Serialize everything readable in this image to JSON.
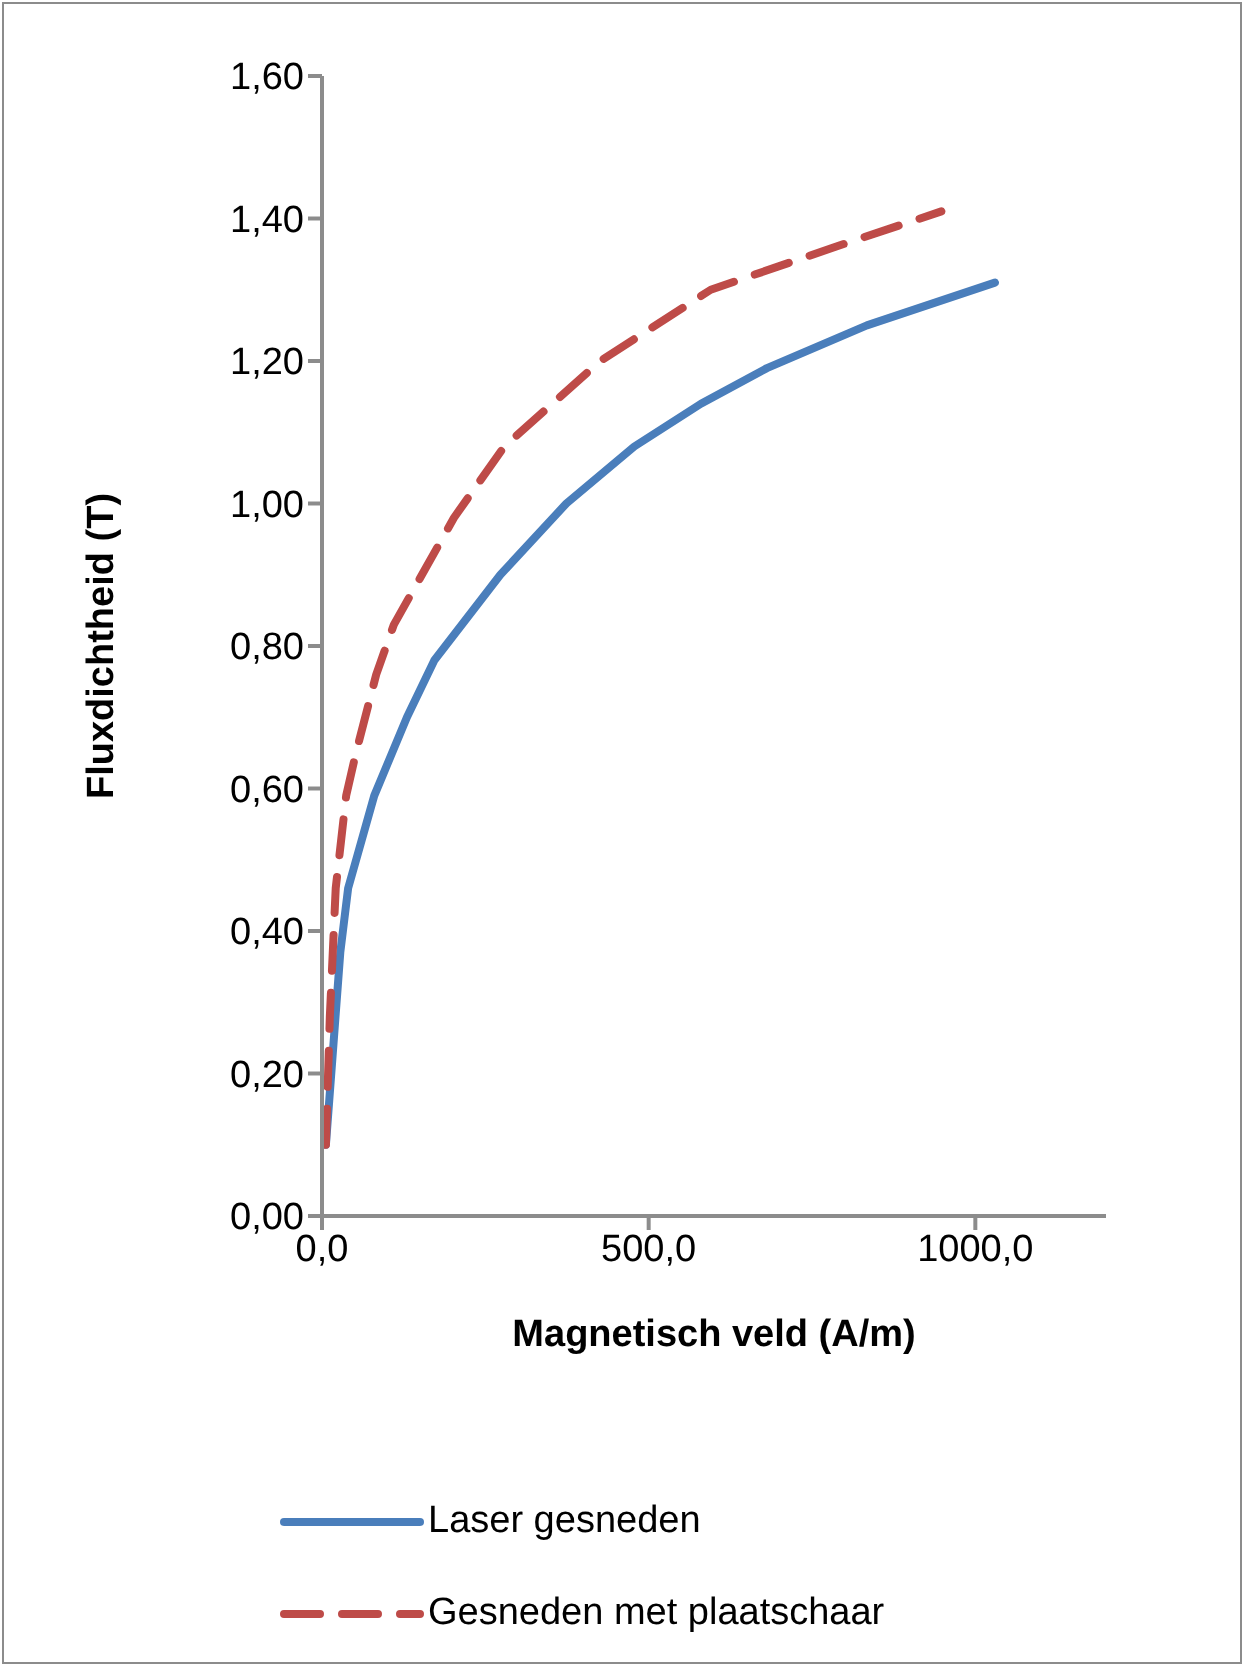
{
  "chart_data": {
    "type": "line",
    "xlabel": "Magnetisch veld (A/m)",
    "ylabel": "Fluxdichtheid (T)",
    "xlim": [
      0,
      1200
    ],
    "xticks": [
      {
        "value": 0,
        "label": "0,0"
      },
      {
        "value": 500,
        "label": "500,0"
      },
      {
        "value": 1000,
        "label": "1000,0"
      }
    ],
    "ylim": [
      0,
      1.6
    ],
    "yticks": [
      {
        "value": 0,
        "label": "0,00"
      },
      {
        "value": 0.2,
        "label": "0,20"
      },
      {
        "value": 0.4,
        "label": "0,40"
      },
      {
        "value": 0.6,
        "label": "0,60"
      },
      {
        "value": 0.8,
        "label": "0,80"
      },
      {
        "value": 1.0,
        "label": "1,00"
      },
      {
        "value": 1.2,
        "label": "1,20"
      },
      {
        "value": 1.4,
        "label": "1,40"
      },
      {
        "value": 1.6,
        "label": "1,60"
      }
    ],
    "grid": false,
    "legend": "bottom",
    "marker": "none",
    "series": [
      {
        "name": "Laser gesneden",
        "color": "#4a7ebb",
        "line_style": "solid",
        "x": [
          6,
          15,
          28,
          40,
          80,
          130,
          172,
          273,
          374,
          478,
          580,
          681,
          834,
          1030
        ],
        "values": [
          0.1,
          0.21,
          0.37,
          0.46,
          0.59,
          0.7,
          0.78,
          0.9,
          1.0,
          1.08,
          1.14,
          1.19,
          1.25,
          1.31
        ]
      },
      {
        "name": "Gesneden met plaatschaar",
        "color": "#be4b48",
        "line_style": "dashed",
        "x": [
          6,
          12,
          18,
          21,
          37,
          52,
          83,
          110,
          202,
          279,
          426,
          595,
          785,
          948
        ],
        "values": [
          0.1,
          0.28,
          0.4,
          0.46,
          0.59,
          0.65,
          0.76,
          0.83,
          0.98,
          1.08,
          1.2,
          1.3,
          1.36,
          1.41
        ]
      }
    ]
  }
}
